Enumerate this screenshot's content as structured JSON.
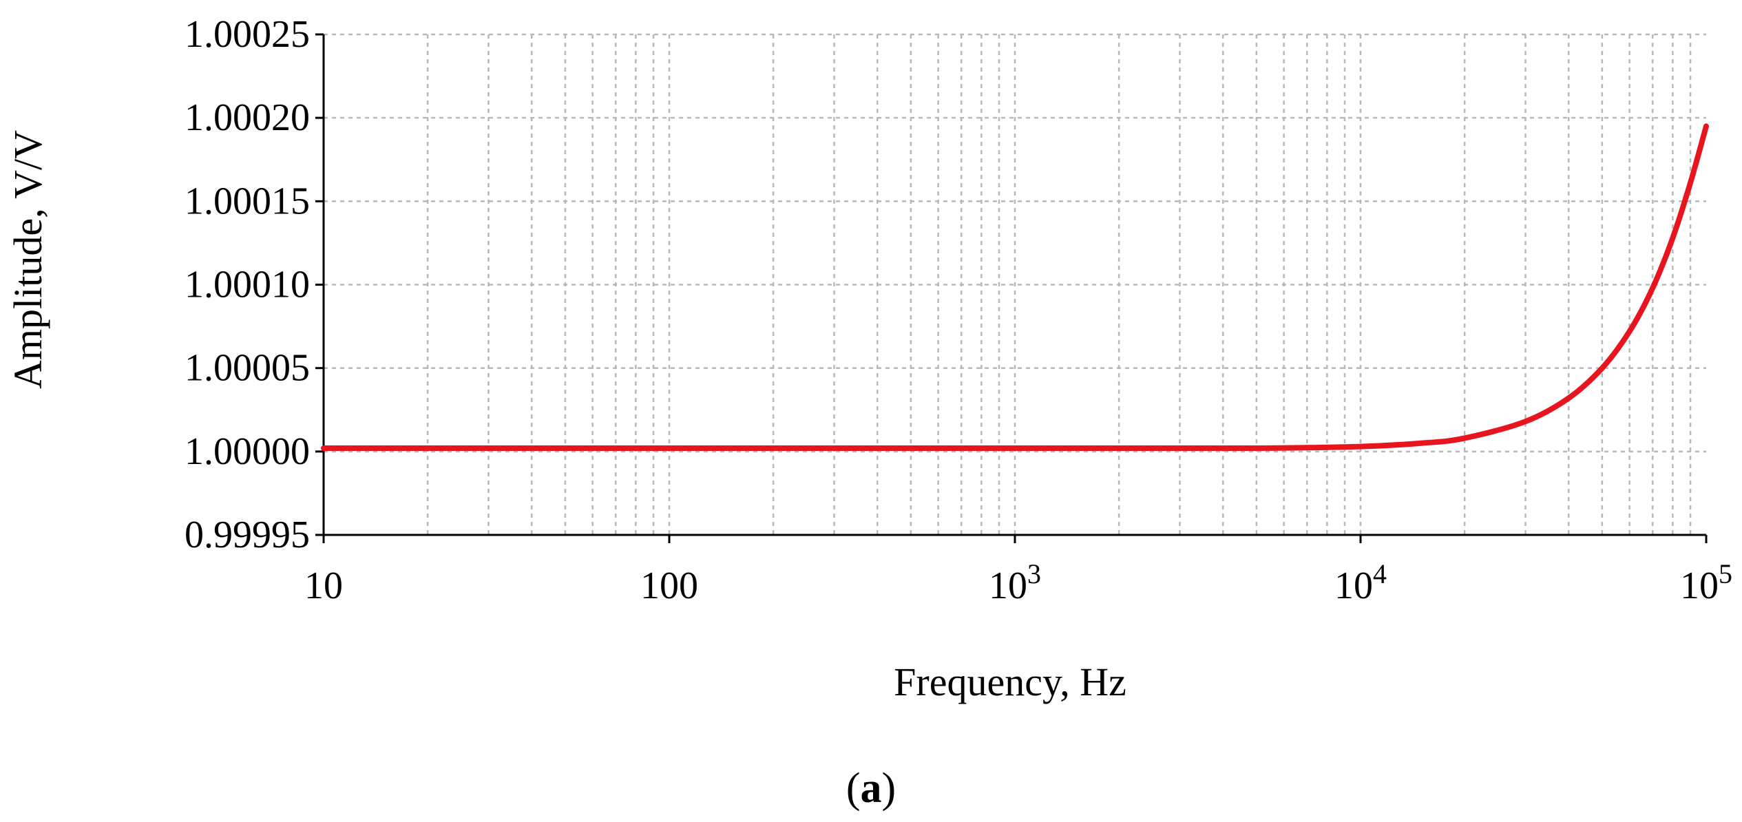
{
  "chart_data": {
    "type": "line",
    "xlabel": "Frequency, Hz",
    "ylabel": "Amplitude, V/V",
    "x_scale": "log",
    "xlim": [
      10,
      100000
    ],
    "ylim": [
      0.99995,
      1.00025
    ],
    "x_ticks": [
      {
        "value": 10,
        "base": "10",
        "exp": ""
      },
      {
        "value": 100,
        "base": "100",
        "exp": ""
      },
      {
        "value": 1000,
        "base": "10",
        "exp": "3"
      },
      {
        "value": 10000,
        "base": "10",
        "exp": "4"
      },
      {
        "value": 100000,
        "base": "10",
        "exp": "5"
      }
    ],
    "y_ticks": [
      {
        "value": 1.00025,
        "label": "1.00025"
      },
      {
        "value": 1.0002,
        "label": "1.00020"
      },
      {
        "value": 1.00015,
        "label": "1.00015"
      },
      {
        "value": 1.0001,
        "label": "1.00010"
      },
      {
        "value": 1.00005,
        "label": "1.00005"
      },
      {
        "value": 1.0,
        "label": "1.00000"
      },
      {
        "value": 0.99995,
        "label": "0.99995"
      }
    ],
    "grid": true,
    "series": [
      {
        "color": "#e8141e",
        "x": [
          10,
          100,
          1000,
          5000,
          10000,
          15000,
          20000,
          30000,
          40000,
          50000,
          60000,
          70000,
          80000,
          90000,
          100000
        ],
        "y": [
          1.000002,
          1.000002,
          1.000002,
          1.000002,
          1.000003,
          1.000005,
          1.000008,
          1.000018,
          1.000032,
          1.00005,
          1.000072,
          1.000098,
          1.000128,
          1.000161,
          1.000195
        ]
      }
    ]
  },
  "panel_label": {
    "open": "(",
    "letter": "a",
    "close": ")"
  }
}
